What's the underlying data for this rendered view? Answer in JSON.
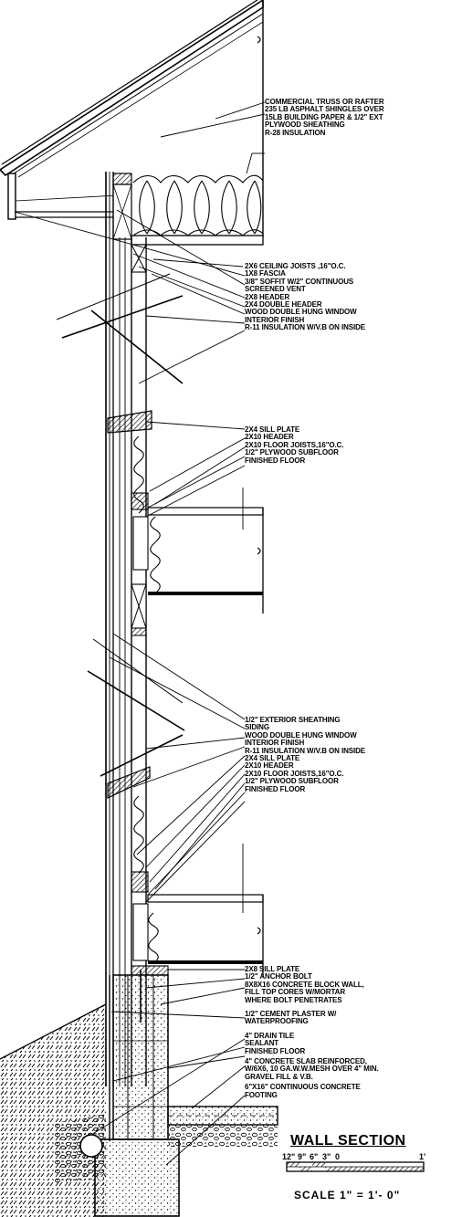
{
  "groups": [
    {
      "id": "roof",
      "labels": [
        "COMMERCIAL TRUSS OR RAFTER",
        "235 LB ASPHALT SHINGLES OVER",
        "15LB BUILDING PAPER & 1/2\" EXT",
        "PLYWOOD SHEATHING",
        "R-28 INSULATION"
      ]
    },
    {
      "id": "eave",
      "labels": [
        "2x6 CEILING JOISTS ,16\"O.C.",
        "1x8 FASCIA",
        "3/8\" SOFFIT W/2\" CONTINUOUS",
        "SCREENED VENT",
        "2x8 HEADER",
        "2x4 DOUBLE HEADER",
        "WOOD DOUBLE HUNG WINDOW",
        "INTERIOR FINISH",
        "R-11 INSULATION W/V.B ON INSIDE"
      ]
    },
    {
      "id": "floor2",
      "labels": [
        "2x4 SILL PLATE",
        "2x10 HEADER",
        "2x10 FLOOR JOISTS,16\"O.C.",
        "1/2\" PLYWOOD SUBFLOOR",
        "FINISHED FLOOR"
      ]
    },
    {
      "id": "wall1",
      "labels": [
        "1/2\" EXTERIOR SHEATHING",
        "SIDING",
        "WOOD DOUBLE HUNG WINDOW",
        "INTERIOR FINISH",
        "R-11 INSULATION W/V.B ON INSIDE",
        "2x4 SILL PLATE",
        "2x10 HEADER",
        "2x10 FLOOR JOISTS,16\"O.C.",
        "1/2\" PLYWOOD SUBFLOOR",
        "FINISHED FLOOR"
      ]
    },
    {
      "id": "foundation",
      "labels": [
        "2x8 SILL PLATE",
        "1/2\" ANCHOR BOLT",
        "8x8x16 CONCRETE BLOCK WALL,",
        "FILL TOP CORES W/MORTAR",
        "WHERE BOLT PENETRATES",
        "1/2\" CEMENT PLASTER W/",
        "WATERPROOFING",
        "4\" DRAIN TILE",
        "SEALANT",
        "FINISHED FLOOR",
        "4\" CONCRETE SLAB REINFORCED,",
        "W/6x6, 10 GA.W.W.MESH OVER 4\" MIN.",
        "GRAVEL FILL & V.B.",
        "6\"x16\" CONTINUOUS CONCRETE",
        "FOOTING"
      ]
    }
  ],
  "title": "WALL SECTION",
  "scale": {
    "ticks": [
      "12\"",
      "9\"",
      "6\"",
      "3\"",
      "0",
      "1'"
    ],
    "text": "SCALE  1\" = 1'- 0\""
  }
}
